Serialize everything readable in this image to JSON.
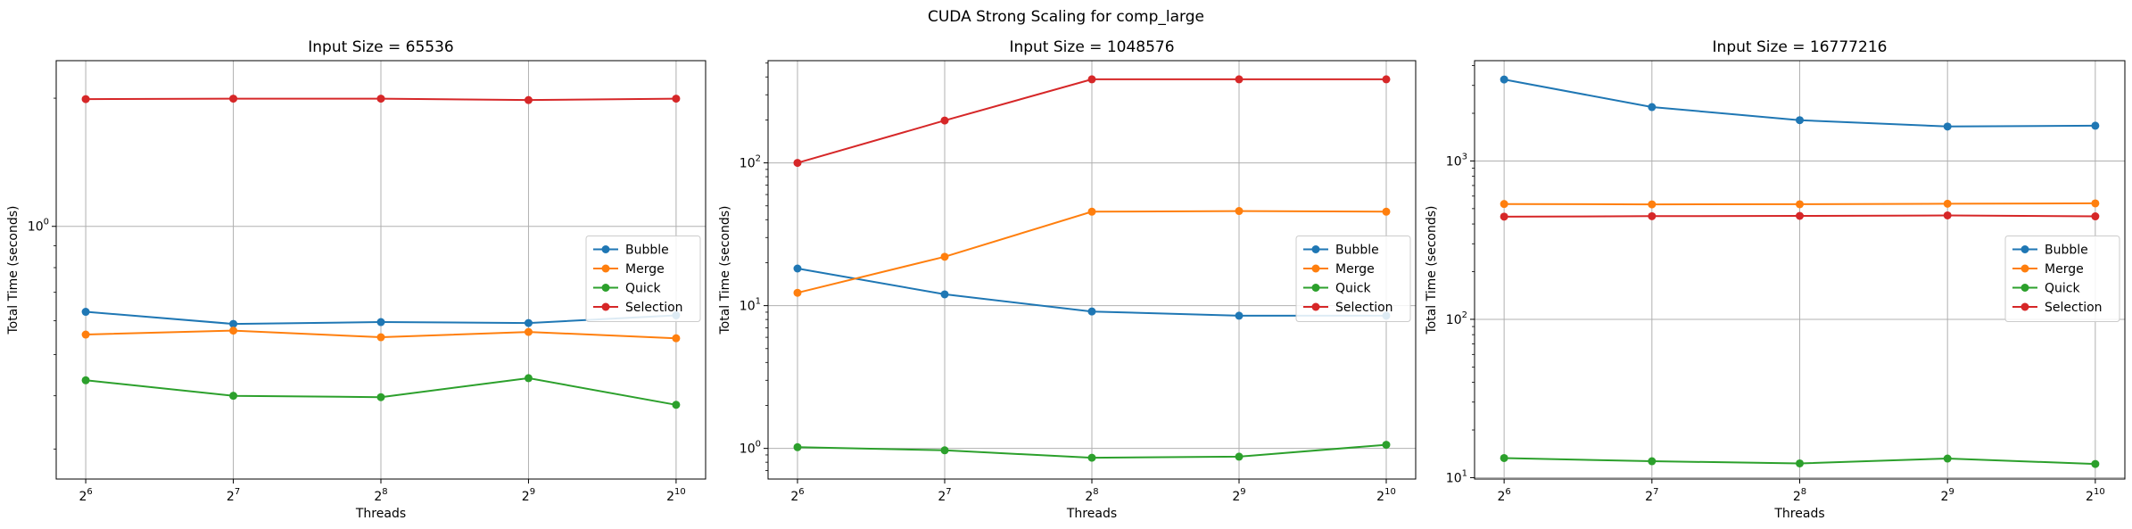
{
  "suptitle": "CUDA Strong Scaling for comp_large",
  "colors": {
    "Bubble": "#1f77b4",
    "Merge": "#ff7f0e",
    "Quick": "#2ca02c",
    "Selection": "#d62728"
  },
  "chart_data": [
    {
      "type": "line",
      "title": "Input Size = 65536",
      "xlabel": "Threads",
      "ylabel": "Total Time (seconds)",
      "x": [
        64,
        128,
        256,
        512,
        1024
      ],
      "xtick_labels": [
        "2^6",
        "2^7",
        "2^8",
        "2^9",
        "2^10"
      ],
      "yscale": "log",
      "ylim": [
        0.255,
        2.45
      ],
      "yticks": [
        {
          "value": 1,
          "label": "10^0"
        }
      ],
      "grid": true,
      "legend": "center-right",
      "series": [
        {
          "name": "Bubble",
          "values": [
            0.63,
            0.59,
            0.596,
            0.593,
            0.618
          ]
        },
        {
          "name": "Merge",
          "values": [
            0.557,
            0.569,
            0.549,
            0.565,
            0.546
          ]
        },
        {
          "name": "Quick",
          "values": [
            0.435,
            0.4,
            0.397,
            0.44,
            0.381
          ]
        },
        {
          "name": "Selection",
          "values": [
            1.99,
            1.995,
            1.995,
            1.98,
            1.995
          ]
        }
      ]
    },
    {
      "type": "line",
      "title": "Input Size = 1048576",
      "xlabel": "Threads",
      "ylabel": "Total Time (seconds)",
      "x": [
        64,
        128,
        256,
        512,
        1024
      ],
      "xtick_labels": [
        "2^6",
        "2^7",
        "2^8",
        "2^9",
        "2^10"
      ],
      "yscale": "log",
      "ylim": [
        0.61,
        520
      ],
      "yticks": [
        {
          "value": 1,
          "label": "10^0"
        },
        {
          "value": 10,
          "label": "10^1"
        },
        {
          "value": 100,
          "label": "10^2"
        }
      ],
      "grid": true,
      "legend": "center-right",
      "series": [
        {
          "name": "Bubble",
          "values": [
            18.2,
            12.0,
            9.1,
            8.5,
            8.5
          ]
        },
        {
          "name": "Merge",
          "values": [
            12.3,
            22.0,
            45.5,
            46.0,
            45.5
          ]
        },
        {
          "name": "Quick",
          "values": [
            1.02,
            0.97,
            0.86,
            0.875,
            1.06
          ]
        },
        {
          "name": "Selection",
          "values": [
            100,
            198,
            385,
            385,
            385
          ]
        }
      ]
    },
    {
      "type": "line",
      "title": "Input Size = 16777216",
      "xlabel": "Threads",
      "ylabel": "Total Time (seconds)",
      "x": [
        64,
        128,
        256,
        512,
        1024
      ],
      "xtick_labels": [
        "2^6",
        "2^7",
        "2^8",
        "2^9",
        "2^10"
      ],
      "yscale": "log",
      "ylim": [
        9.8,
        4300
      ],
      "yticks": [
        {
          "value": 10,
          "label": "10^1"
        },
        {
          "value": 100,
          "label": "10^2"
        },
        {
          "value": 1000,
          "label": "10^3"
        }
      ],
      "grid": true,
      "legend": "center-right",
      "series": [
        {
          "name": "Bubble",
          "values": [
            3270,
            2190,
            1810,
            1650,
            1670
          ]
        },
        {
          "name": "Merge",
          "values": [
            535,
            532,
            533,
            537,
            540
          ]
        },
        {
          "name": "Quick",
          "values": [
            13.3,
            12.7,
            12.3,
            13.2,
            12.2
          ]
        },
        {
          "name": "Selection",
          "values": [
            445,
            448,
            450,
            453,
            447
          ]
        }
      ]
    }
  ]
}
